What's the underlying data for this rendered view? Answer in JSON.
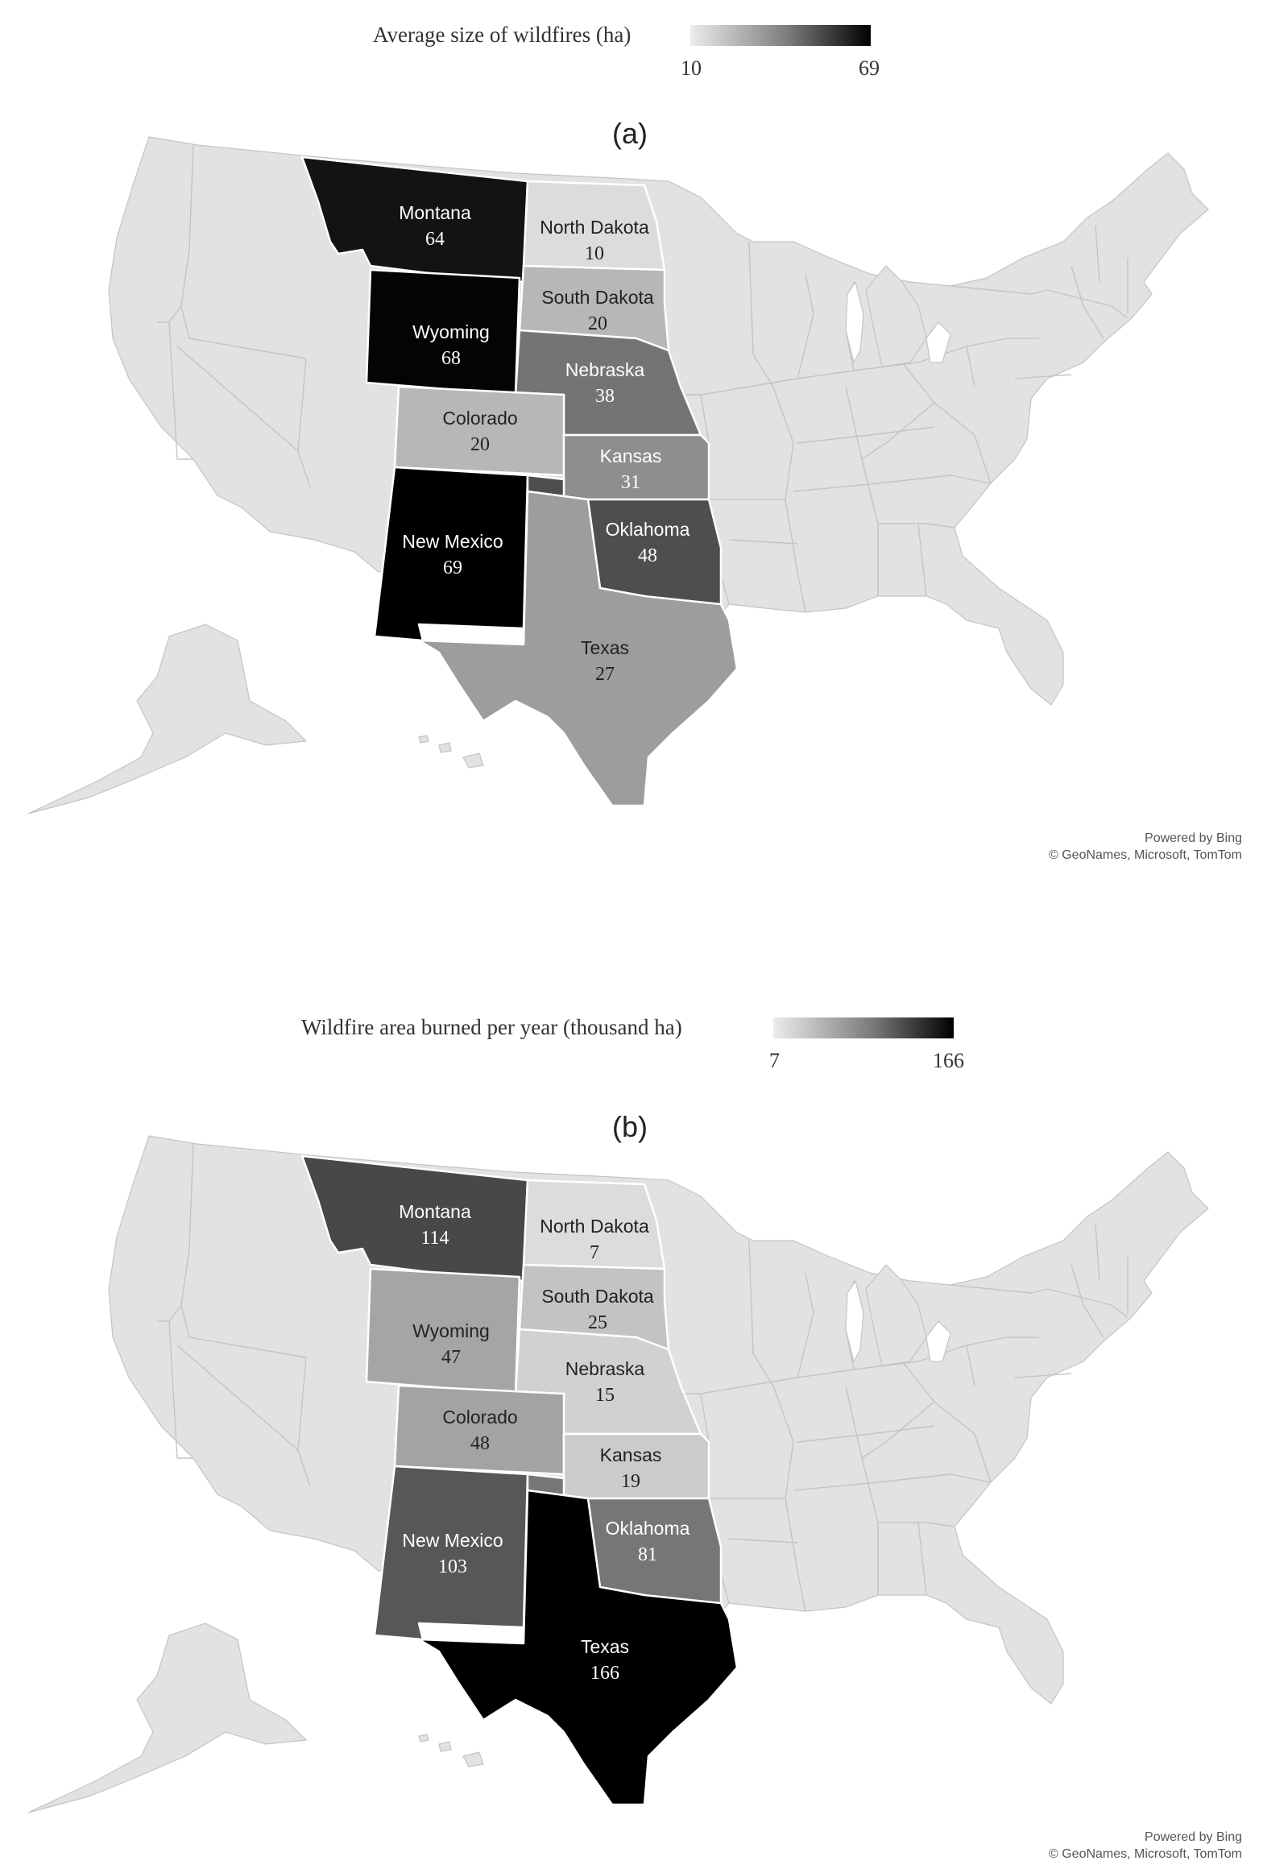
{
  "map_a": {
    "panel_label": "(a)",
    "legend": {
      "title": "Average size of wildfires (ha)",
      "min": "10",
      "max": "69"
    },
    "states": [
      {
        "key": "montana",
        "name": "Montana",
        "value": "64"
      },
      {
        "key": "north-dakota",
        "name": "North Dakota",
        "value": "10"
      },
      {
        "key": "south-dakota",
        "name": "South Dakota",
        "value": "20"
      },
      {
        "key": "wyoming",
        "name": "Wyoming",
        "value": "68"
      },
      {
        "key": "nebraska",
        "name": "Nebraska",
        "value": "38"
      },
      {
        "key": "colorado",
        "name": "Colorado",
        "value": "20"
      },
      {
        "key": "kansas",
        "name": "Kansas",
        "value": "31"
      },
      {
        "key": "new-mexico",
        "name": "New Mexico",
        "value": "69"
      },
      {
        "key": "oklahoma",
        "name": "Oklahoma",
        "value": "48"
      },
      {
        "key": "texas",
        "name": "Texas",
        "value": "27"
      }
    ],
    "credit_line1": "Powered by Bing",
    "credit_line2": "© GeoNames, Microsoft, TomTom"
  },
  "map_b": {
    "panel_label": "(b)",
    "legend": {
      "title": "Wildfire area burned per year  (thousand ha)",
      "min": "7",
      "max": "166"
    },
    "states": [
      {
        "key": "montana",
        "name": "Montana",
        "value": "114"
      },
      {
        "key": "north-dakota",
        "name": "North Dakota",
        "value": "7"
      },
      {
        "key": "south-dakota",
        "name": "South Dakota",
        "value": "25"
      },
      {
        "key": "wyoming",
        "name": "Wyoming",
        "value": "47"
      },
      {
        "key": "nebraska",
        "name": "Nebraska",
        "value": "15"
      },
      {
        "key": "colorado",
        "name": "Colorado",
        "value": "48"
      },
      {
        "key": "kansas",
        "name": "Kansas",
        "value": "19"
      },
      {
        "key": "new-mexico",
        "name": "New Mexico",
        "value": "103"
      },
      {
        "key": "oklahoma",
        "name": "Oklahoma",
        "value": "81"
      },
      {
        "key": "texas",
        "name": "Texas",
        "value": "166"
      }
    ],
    "credit_line1": "Powered by Bing",
    "credit_line2": "© GeoNames, Microsoft, TomTom"
  }
}
